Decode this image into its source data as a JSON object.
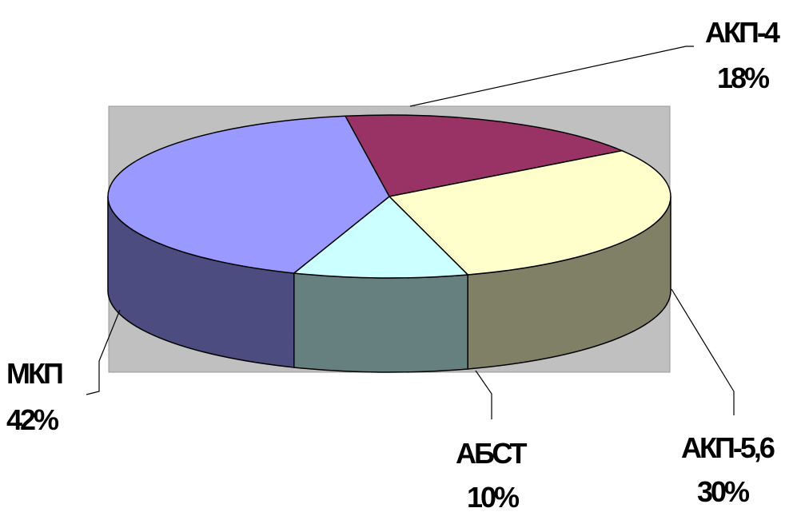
{
  "chart_data": {
    "type": "pie",
    "style": "3d",
    "categories": [
      "АКП-4",
      "АКП-5,6",
      "АБСТ",
      "МКП"
    ],
    "values": [
      18,
      30,
      10,
      42
    ],
    "labels": [
      {
        "name": "АКП-4",
        "percent": "18%"
      },
      {
        "name": "АКП-5,6",
        "percent": "30%"
      },
      {
        "name": "АБСТ",
        "percent": "10%"
      },
      {
        "name": "МКП",
        "percent": "42%"
      }
    ],
    "top_colors": [
      "#993366",
      "#ffffcc",
      "#ccffff",
      "#9999ff"
    ],
    "side_colors": [
      "#6b2448",
      "#808066",
      "#668080",
      "#4c4c80"
    ],
    "plot_background": "#c0c0c0",
    "legend": "none",
    "grid": false
  }
}
